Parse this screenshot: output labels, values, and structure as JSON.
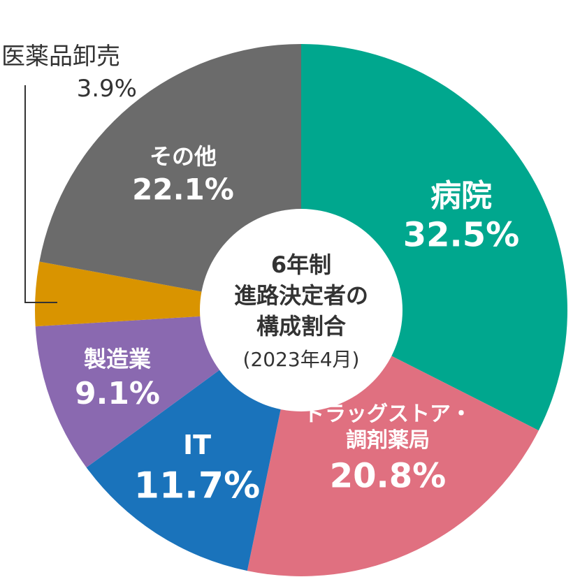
{
  "chart_data": {
    "type": "pie",
    "variant": "donut",
    "title": "6年制\n進路決定者の\n構成割合",
    "subtitle": "(2023年4月)",
    "slices": [
      {
        "name": "病院",
        "value": 32.5,
        "label": "32.5%",
        "color": "#00a78e"
      },
      {
        "name": "ドラッグストア・\n調剤薬局",
        "value": 20.8,
        "label": "20.8%",
        "color": "#e07080"
      },
      {
        "name": "IT",
        "value": 11.7,
        "label": "11.7%",
        "color": "#1a73bb"
      },
      {
        "name": "製造業",
        "value": 9.1,
        "label": "9.1%",
        "color": "#8a69b0"
      },
      {
        "name": "医薬品卸売",
        "value": 3.9,
        "label": "3.9%",
        "color": "#d99400"
      },
      {
        "name": "その他",
        "value": 22.1,
        "label": "22.1%",
        "color": "#6b6b6b"
      }
    ],
    "start_angle_deg": 0,
    "direction": "clockwise",
    "legend": "none"
  }
}
